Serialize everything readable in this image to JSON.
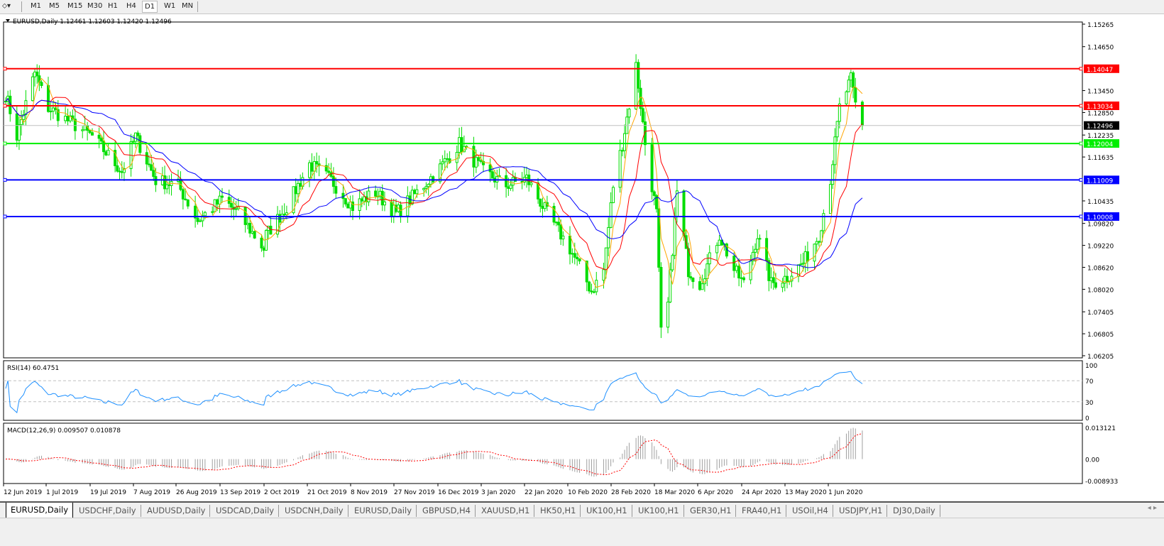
{
  "toolbar": {
    "timeframes": [
      "M1",
      "M5",
      "M15",
      "M30",
      "H1",
      "H4",
      "D1",
      "W1",
      "MN"
    ],
    "active": "D1"
  },
  "chart": {
    "header": "EURUSD,Daily  1.12461 1.12603 1.12420 1.12496",
    "price_ticks": [
      "1.15265",
      "1.14650",
      "1.13450",
      "1.12850",
      "1.12235",
      "1.11635",
      "1.10435",
      "1.09820",
      "1.09220",
      "1.08620",
      "1.08020",
      "1.07405",
      "1.06805",
      "1.06205"
    ],
    "price_range": [
      1.06205,
      1.15265
    ],
    "current_price": "1.12496",
    "hlines": [
      {
        "price": "1.14047",
        "color": "#ff0000"
      },
      {
        "price": "1.13034",
        "color": "#ff0000"
      },
      {
        "price": "1.12004",
        "color": "#00ee00"
      },
      {
        "price": "1.11009",
        "color": "#0000ff"
      },
      {
        "price": "1.10008",
        "color": "#0000ff"
      }
    ],
    "colors": {
      "candle": "#00dd00",
      "ma_fast": "#ffa500",
      "ma_mid": "#ff0000",
      "ma_slow": "#0000ff",
      "rsi": "#1e90ff",
      "macd_signal": "#ff0000",
      "macd_hist": "#a0a0a0"
    },
    "price_path": [
      [
        "2019-06-12",
        1.1336
      ],
      [
        "2019-06-17",
        1.1221
      ],
      [
        "2019-06-25",
        1.1394
      ],
      [
        "2019-07-01",
        1.1298
      ],
      [
        "2019-07-10",
        1.1259
      ],
      [
        "2019-07-19",
        1.122
      ],
      [
        "2019-08-01",
        1.1124
      ],
      [
        "2019-08-07",
        1.122
      ],
      [
        "2019-08-16",
        1.11
      ],
      [
        "2019-08-26",
        1.1086
      ],
      [
        "2019-09-03",
        1.099
      ],
      [
        "2019-09-13",
        1.1048
      ],
      [
        "2019-09-20",
        1.1009
      ],
      [
        "2019-10-01",
        1.0913
      ],
      [
        "2019-10-02",
        1.0951
      ],
      [
        "2019-10-11",
        1.1028
      ],
      [
        "2019-10-21",
        1.1144
      ],
      [
        "2019-10-30",
        1.11
      ],
      [
        "2019-11-08",
        1.1028
      ],
      [
        "2019-11-18",
        1.1067
      ],
      [
        "2019-11-27",
        1.1009
      ],
      [
        "2019-12-06",
        1.1067
      ],
      [
        "2019-12-16",
        1.1134
      ],
      [
        "2019-12-24",
        1.12
      ],
      [
        "2020-01-03",
        1.1124
      ],
      [
        "2020-01-13",
        1.1086
      ],
      [
        "2020-01-22",
        1.1105
      ],
      [
        "2020-01-31",
        1.1009
      ],
      [
        "2020-02-10",
        1.0913
      ],
      [
        "2020-02-19",
        1.0797
      ],
      [
        "2020-02-24",
        1.0855
      ],
      [
        "2020-02-28",
        1.1086
      ],
      [
        "2020-03-03",
        1.12
      ],
      [
        "2020-03-09",
        1.1413
      ],
      [
        "2020-03-13",
        1.12
      ],
      [
        "2020-03-18",
        1.1009
      ],
      [
        "2020-03-20",
        1.0682
      ],
      [
        "2020-03-23",
        1.076
      ],
      [
        "2020-03-27",
        1.1067
      ],
      [
        "2020-04-01",
        1.0855
      ],
      [
        "2020-04-06",
        1.0817
      ],
      [
        "2020-04-14",
        1.0951
      ],
      [
        "2020-04-20",
        1.0855
      ],
      [
        "2020-04-24",
        1.0817
      ],
      [
        "2020-04-30",
        1.0951
      ],
      [
        "2020-05-06",
        1.0817
      ],
      [
        "2020-05-13",
        1.0836
      ],
      [
        "2020-05-20",
        1.0874
      ],
      [
        "2020-05-27",
        1.0951
      ],
      [
        "2020-06-01",
        1.1105
      ],
      [
        "2020-06-05",
        1.1298
      ],
      [
        "2020-06-10",
        1.1375
      ],
      [
        "2020-06-12",
        1.1307
      ],
      [
        "2020-06-15",
        1.12496
      ]
    ],
    "date_labels": [
      "12 Jun 2019",
      "1 Jul 2019",
      "19 Jul 2019",
      "7 Aug 2019",
      "26 Aug 2019",
      "13 Sep 2019",
      "2 Oct 2019",
      "21 Oct 2019",
      "8 Nov 2019",
      "27 Nov 2019",
      "16 Dec 2019",
      "3 Jan 2020",
      "22 Jan 2020",
      "10 Feb 2020",
      "28 Feb 2020",
      "18 Mar 2020",
      "6 Apr 2020",
      "24 Apr 2020",
      "13 May 2020",
      "1 Jun 2020"
    ]
  },
  "rsi": {
    "label": "RSI(14) 60.4751",
    "ticks": [
      "100",
      "70",
      "30",
      "0"
    ]
  },
  "macd": {
    "label": "MACD(12,26,9) 0.009507 0.010878",
    "ticks": [
      "0.013121",
      "0.00",
      "-0.008933"
    ]
  },
  "tabs": [
    "EURUSD,Daily",
    "USDCHF,Daily",
    "AUDUSD,Daily",
    "USDCAD,Daily",
    "USDCNH,Daily",
    "EURUSD,Daily",
    "GBPUSD,H4",
    "XAUUSD,H1",
    "HK50,H1",
    "UK100,H1",
    "UK100,H1",
    "GER30,H1",
    "FRA40,H1",
    "USOil,H4",
    "USDJPY,H1",
    "DJ30,Daily"
  ],
  "active_tab": 0
}
